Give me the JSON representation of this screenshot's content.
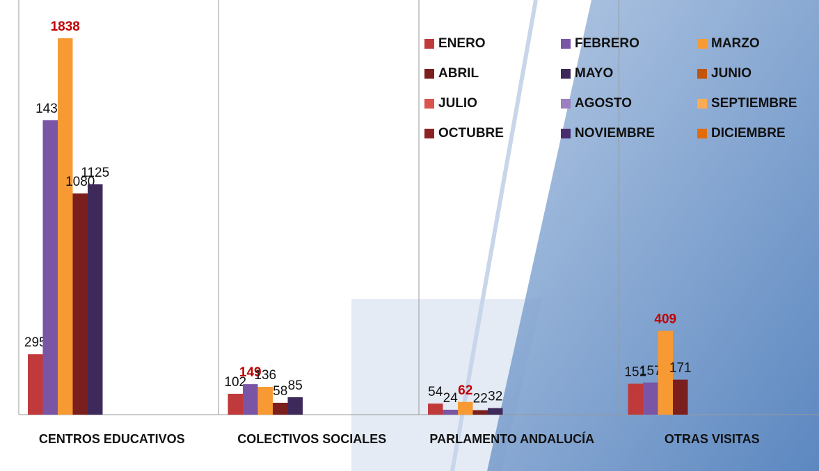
{
  "chart_data": {
    "type": "bar",
    "categories": [
      "CENTROS EDUCATIVOS",
      "COLECTIVOS SOCIALES",
      "PARLAMENTO ANDALUCÍA",
      "OTRAS VISITAS"
    ],
    "series": [
      {
        "name": "ENERO",
        "color": "#c0393b",
        "values": [
          295,
          102,
          54,
          151
        ]
      },
      {
        "name": "FEBRERO",
        "color": "#7a55a6",
        "values": [
          1438,
          149,
          24,
          157
        ]
      },
      {
        "name": "MARZO",
        "color": "#f79a33",
        "values": [
          1838,
          136,
          62,
          409
        ]
      },
      {
        "name": "ABRIL",
        "color": "#7b1e1e",
        "values": [
          1080,
          58,
          22,
          171
        ]
      },
      {
        "name": "MAYO",
        "color": "#3d2a5a",
        "values": [
          1125,
          85,
          32,
          null
        ]
      },
      {
        "name": "JUNIO",
        "color": "#c0560e",
        "values": [
          null,
          null,
          null,
          null
        ]
      },
      {
        "name": "JULIO",
        "color": "#d9534f",
        "values": [
          null,
          null,
          null,
          null
        ]
      },
      {
        "name": "AGOSTO",
        "color": "#9b7fc0",
        "values": [
          null,
          null,
          null,
          null
        ]
      },
      {
        "name": "SEPTIEMBRE",
        "color": "#fbab56",
        "values": [
          null,
          null,
          null,
          null
        ]
      },
      {
        "name": "OCTUBRE",
        "color": "#8b2323",
        "values": [
          null,
          null,
          null,
          null
        ]
      },
      {
        "name": "NOVIEMBRE",
        "color": "#4a2d6e",
        "values": [
          null,
          null,
          null,
          null
        ]
      },
      {
        "name": "DICIEMBRE",
        "color": "#e36c0a",
        "values": [
          null,
          null,
          null,
          null
        ]
      }
    ]
  }
}
